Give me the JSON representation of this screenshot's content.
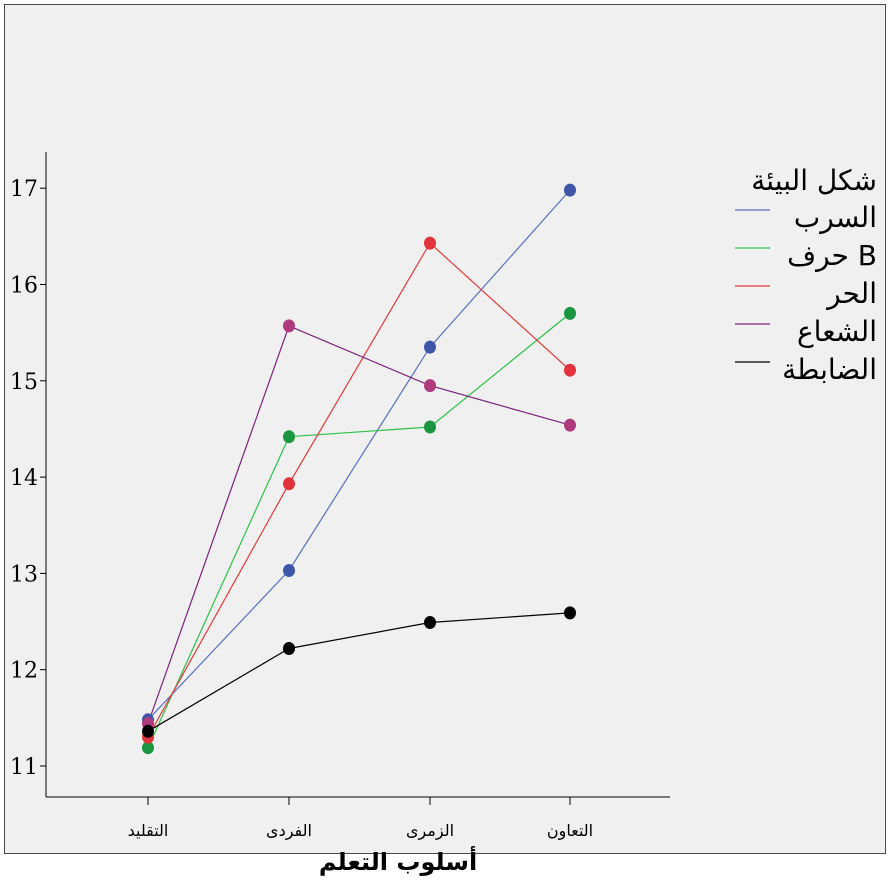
{
  "chart_data": {
    "type": "line",
    "xlabel": "أسلوب التعلم",
    "ylabel": "",
    "categories": [
      "التقليد",
      "الفردى",
      "الزمرى",
      "التعاون"
    ],
    "ylim": [
      10.7,
      17.35
    ],
    "yticks": [
      11,
      12,
      13,
      14,
      15,
      16,
      17
    ],
    "grid": false,
    "legend_title": "شكل البيئة",
    "legend_position": "right",
    "series": [
      {
        "name": "السرب",
        "values": [
          11.48,
          13.03,
          15.35,
          16.98
        ],
        "line_color": "#5a6fc0",
        "marker_color": "#3f56a8"
      },
      {
        "name": "حرف B",
        "values": [
          11.19,
          14.42,
          14.52,
          15.7
        ],
        "line_color": "#2ec04a",
        "marker_color": "#1a9640"
      },
      {
        "name": "الحر",
        "values": [
          11.3,
          13.93,
          16.43,
          15.11
        ],
        "line_color": "#e23a3a",
        "marker_color": "#e2323c"
      },
      {
        "name": "الشعاع",
        "values": [
          11.44,
          15.57,
          14.95,
          14.54
        ],
        "line_color": "#7a237a",
        "marker_color": "#b03a7e"
      },
      {
        "name": "الضابطة",
        "values": [
          11.36,
          12.22,
          12.49,
          12.59
        ],
        "line_color": "#000000",
        "marker_color": "#000000"
      }
    ]
  }
}
